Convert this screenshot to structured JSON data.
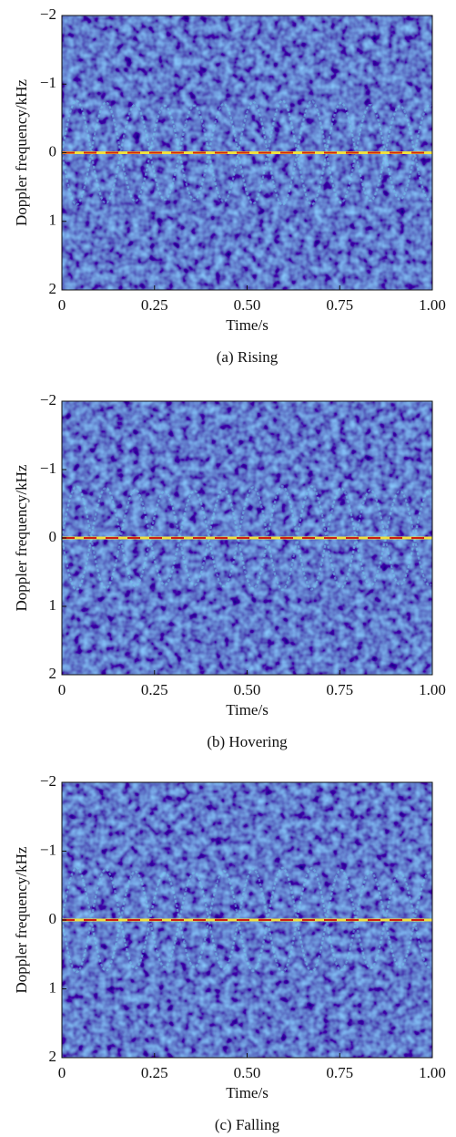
{
  "chart_data": [
    {
      "type": "spectrogram",
      "caption": "(a) Rising",
      "x_label": "Time/s",
      "y_label": "Doppler frequency/kHz",
      "xlim": [
        0,
        1
      ],
      "xticks": [
        0,
        0.25,
        {
          "value": 0.5,
          "label": "0.50"
        },
        0.75,
        {
          "value": 1,
          "label": "1.00"
        }
      ],
      "ylim": [
        2,
        -2
      ],
      "yticks": [
        {
          "value": -2,
          "label": "−2"
        },
        {
          "value": -1,
          "label": "−1"
        },
        0,
        1,
        2
      ]
    },
    {
      "type": "spectrogram",
      "caption": "(b) Hovering",
      "x_label": "Time/s",
      "y_label": "Doppler frequency/kHz",
      "xlim": [
        0,
        1
      ],
      "xticks": [
        0,
        0.25,
        {
          "value": 0.5,
          "label": "0.50"
        },
        0.75,
        {
          "value": 1,
          "label": "1.00"
        }
      ],
      "ylim": [
        2,
        -2
      ],
      "yticks": [
        {
          "value": -2,
          "label": "−2"
        },
        {
          "value": -1,
          "label": "−1"
        },
        0,
        1,
        2
      ]
    },
    {
      "type": "spectrogram",
      "caption": "(c) Falling",
      "x_label": "Time/s",
      "y_label": "Doppler frequency/kHz",
      "xlim": [
        0,
        1
      ],
      "xticks": [
        0,
        0.25,
        {
          "value": 0.5,
          "label": "0.50"
        },
        0.75,
        {
          "value": 1,
          "label": "1.00"
        }
      ],
      "ylim": [
        2,
        -2
      ],
      "yticks": [
        {
          "value": -2,
          "label": "−2"
        },
        {
          "value": -1,
          "label": "−1"
        },
        0,
        1,
        2
      ]
    }
  ]
}
